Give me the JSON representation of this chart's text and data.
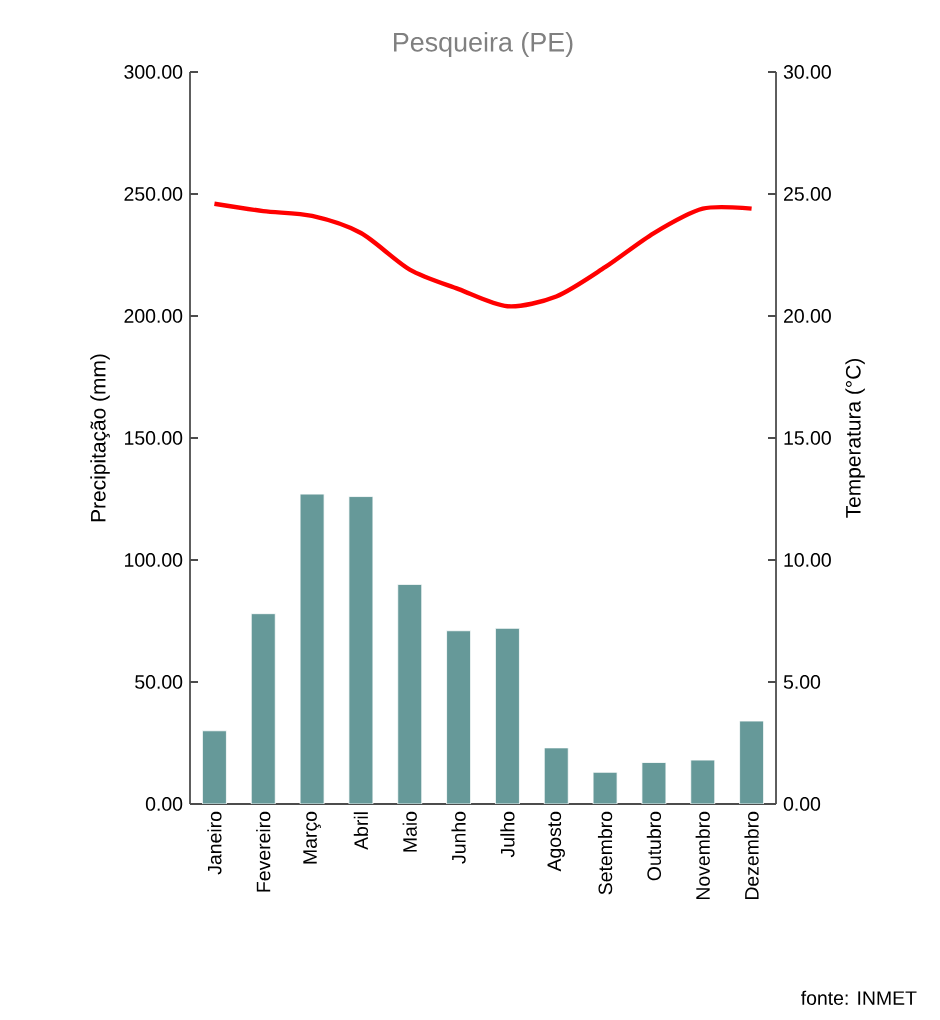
{
  "chart_data": {
    "type": "bar",
    "title": "Pesqueira (PE)",
    "ylabel": "Precipitação (mm)",
    "y2label": "Temperatura (°C)",
    "categories": [
      "Janeiro",
      "Fevereiro",
      "Março",
      "Abril",
      "Maio",
      "Junho",
      "Julho",
      "Agosto",
      "Setembro",
      "Outubro",
      "Novembro",
      "Dezembro"
    ],
    "series": [
      {
        "color": "#669999",
        "values": [
          30,
          78,
          127,
          126,
          90,
          71,
          72,
          23,
          13,
          17,
          18,
          34
        ]
      },
      {
        "type": "line",
        "axis": "y2",
        "color": "#ff0000",
        "values": [
          24.6,
          24.3,
          24.1,
          23.4,
          21.9,
          21.1,
          20.4,
          20.8,
          22.0,
          23.4,
          24.4,
          24.4
        ]
      }
    ],
    "ylim": [
      0,
      300
    ],
    "yticks": [
      {
        "value": 0,
        "label": "0.00"
      },
      {
        "value": 50,
        "label": "50.00"
      },
      {
        "value": 100,
        "label": "100.00"
      },
      {
        "value": 150,
        "label": "150.00"
      },
      {
        "value": 200,
        "label": "200.00"
      },
      {
        "value": 250,
        "label": "250.00"
      },
      {
        "value": 300,
        "label": "300.00"
      }
    ],
    "y2lim": [
      0,
      30
    ],
    "y2ticks": [
      {
        "value": 0,
        "label": "0.00"
      },
      {
        "value": 5,
        "label": "5.00"
      },
      {
        "value": 10,
        "label": "10.00"
      },
      {
        "value": 15,
        "label": "15.00"
      },
      {
        "value": 20,
        "label": "20.00"
      },
      {
        "value": 25,
        "label": "25.00"
      },
      {
        "value": 30,
        "label": "30.00"
      }
    ],
    "grid": false,
    "legend": false,
    "annotations": [
      "fonte: INMET"
    ]
  }
}
